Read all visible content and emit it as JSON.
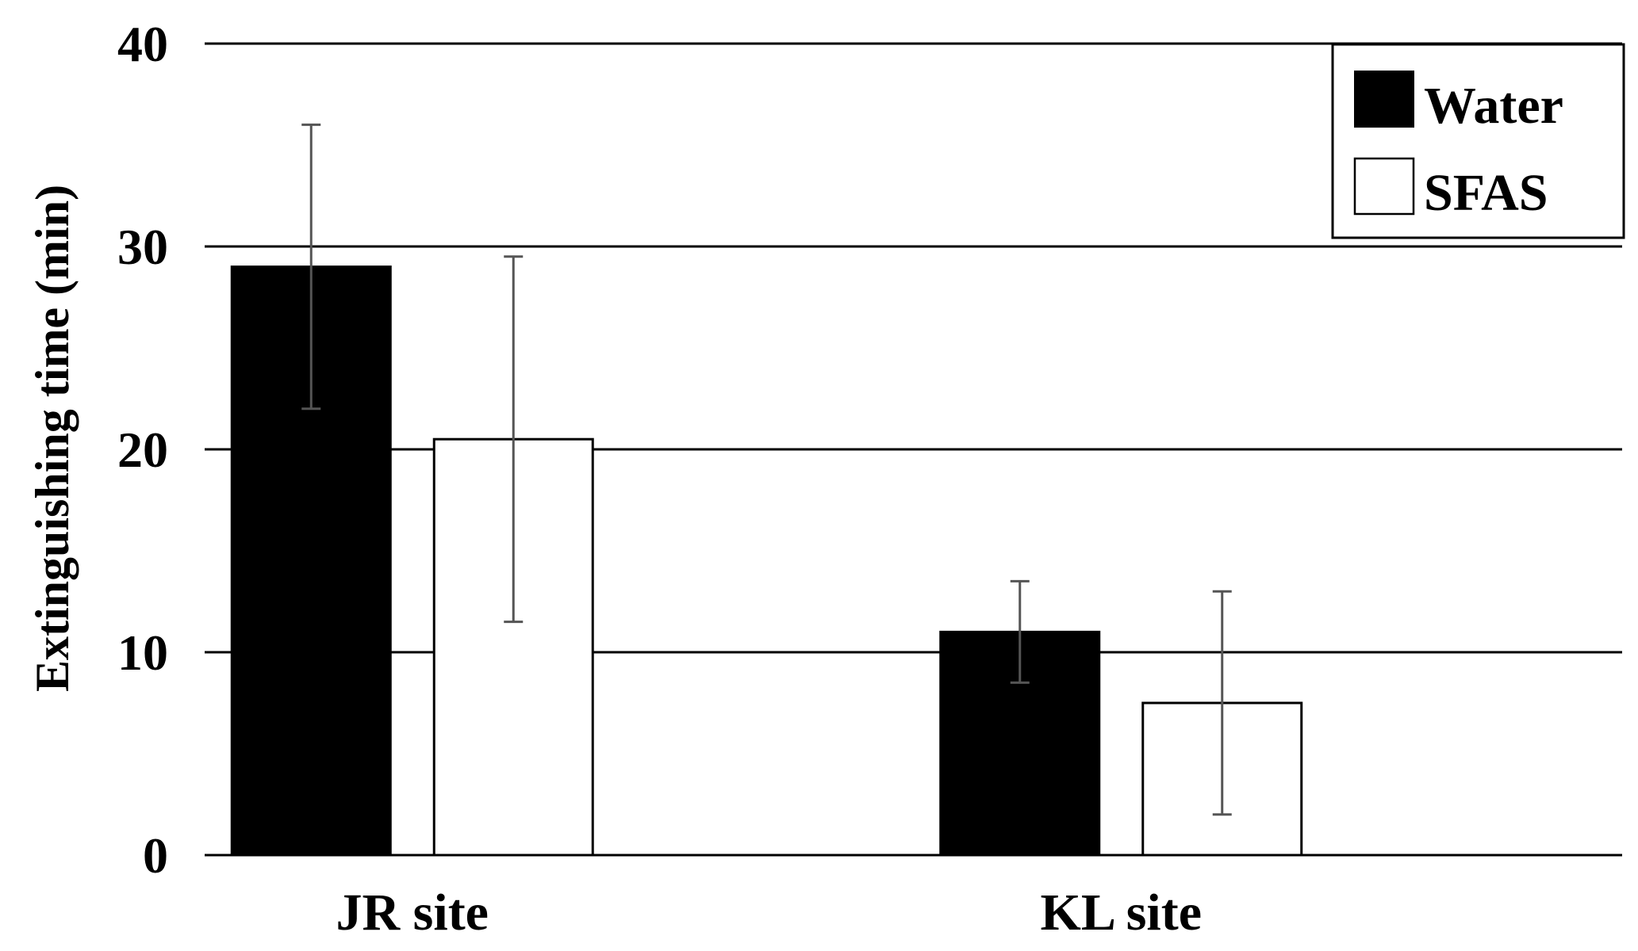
{
  "chart_data": {
    "type": "bar",
    "categories": [
      "JR site",
      "KL site"
    ],
    "series": [
      {
        "name": "Water",
        "values": [
          29,
          11
        ],
        "error_low": [
          22,
          8.5
        ],
        "error_high": [
          36,
          13.5
        ],
        "fill": "#000000"
      },
      {
        "name": "SFAS",
        "values": [
          20.5,
          7.5
        ],
        "error_low": [
          11.5,
          2
        ],
        "error_high": [
          29.5,
          13
        ],
        "fill": "#ffffff"
      }
    ],
    "yticks": [
      "0",
      "10",
      "20",
      "30",
      "40"
    ],
    "ylim": [
      0,
      40
    ],
    "ylabel": "Extinguishing time (min)",
    "xlabel": "",
    "grid": true,
    "legend_position": "top-right"
  }
}
